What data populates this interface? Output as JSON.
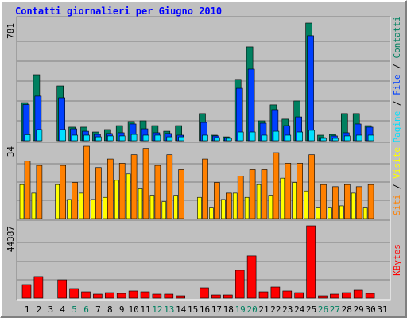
{
  "chart_data": [
    {
      "type": "bar",
      "title": "Contatti giornalieri per Giugno 2010",
      "ylim": [
        0,
        781
      ],
      "yticks": [
        781
      ],
      "grid": true,
      "legend_separator": " / ",
      "series": [
        {
          "name": "Contatti",
          "color": "#008060",
          "values": [
            253,
            438,
            0,
            364,
            90,
            90,
            58,
            74,
            100,
            127,
            132,
            100,
            63,
            100,
            0,
            180,
            37,
            26,
            407,
            623,
            132,
            238,
            143,
            264,
            781,
            37,
            42,
            180,
            180,
            100,
            0
          ]
        },
        {
          "name": "File",
          "color": "#0040ff",
          "values": [
            240,
            296,
            0,
            285,
            79,
            63,
            42,
            48,
            53,
            111,
            79,
            53,
            48,
            37,
            0,
            121,
            32,
            21,
            348,
            475,
            116,
            206,
            100,
            158,
            697,
            21,
            32,
            53,
            111,
            90,
            0
          ]
        },
        {
          "name": "Pagine",
          "color": "#00e0ff",
          "values": [
            40,
            74,
            0,
            74,
            37,
            37,
            26,
            32,
            32,
            42,
            37,
            37,
            26,
            26,
            0,
            37,
            21,
            16,
            58,
            58,
            37,
            63,
            37,
            58,
            69,
            16,
            16,
            32,
            37,
            37,
            0
          ]
        }
      ]
    },
    {
      "type": "bar",
      "ylim": [
        0,
        34
      ],
      "yticks": [
        34
      ],
      "grid": true,
      "legend_separator": " / ",
      "series": [
        {
          "name": "Visite",
          "color": "#ffff00",
          "values": [
            16,
            12,
            0,
            16,
            9,
            12,
            9,
            10,
            18,
            21,
            14,
            11,
            8,
            11,
            0,
            10,
            5,
            9,
            12,
            10,
            16,
            11,
            19,
            17,
            13,
            5,
            5,
            6,
            12,
            5,
            0
          ]
        },
        {
          "name": "Siti",
          "color": "#ff8000",
          "values": [
            27,
            25,
            0,
            25,
            17,
            34,
            24,
            28,
            26,
            30,
            33,
            25,
            30,
            23,
            0,
            28,
            17,
            12,
            20,
            23,
            23,
            31,
            26,
            26,
            30,
            16,
            15,
            16,
            15,
            16,
            0
          ]
        }
      ]
    },
    {
      "type": "bar",
      "ylim": [
        0,
        44387
      ],
      "yticks": [
        44387
      ],
      "grid": true,
      "categories": [
        "1",
        "2",
        "3",
        "4",
        "5",
        "6",
        "7",
        "8",
        "9",
        "10",
        "11",
        "12",
        "13",
        "14",
        "15",
        "16",
        "17",
        "18",
        "19",
        "20",
        "21",
        "22",
        "23",
        "24",
        "25",
        "26",
        "27",
        "28",
        "29",
        "30",
        "31"
      ],
      "category_colors": [
        "#000000",
        "#000000",
        "#000000",
        "#000000",
        "#008060",
        "#008060",
        "#000000",
        "#000000",
        "#000000",
        "#000000",
        "#000000",
        "#008060",
        "#008060",
        "#000000",
        "#000000",
        "#000000",
        "#000000",
        "#000000",
        "#008060",
        "#008060",
        "#000000",
        "#000000",
        "#000000",
        "#000000",
        "#000000",
        "#008060",
        "#008060",
        "#000000",
        "#000000",
        "#000000",
        "#000000"
      ],
      "series": [
        {
          "name": "KBytes",
          "color": "#ff0000",
          "values": [
            8300,
            13200,
            0,
            11200,
            5860,
            3900,
            2440,
            3400,
            2900,
            4400,
            3900,
            2440,
            2440,
            1460,
            0,
            6340,
            1950,
            1950,
            17100,
            25900,
            3900,
            6830,
            4400,
            3400,
            44387,
            1460,
            2440,
            3400,
            4880,
            2900,
            0
          ]
        }
      ]
    }
  ]
}
